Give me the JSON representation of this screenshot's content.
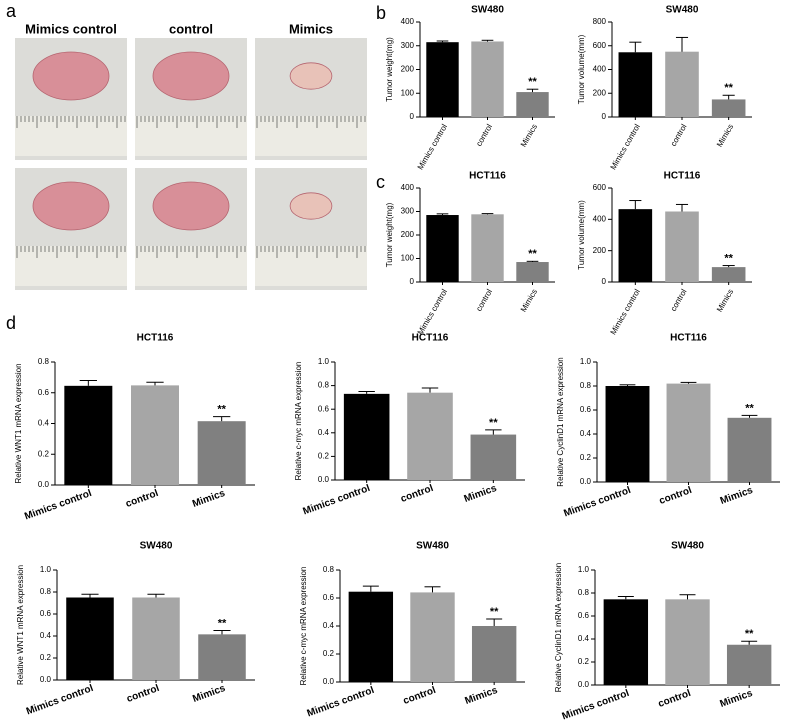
{
  "panel_labels": [
    "a",
    "b",
    "c",
    "d"
  ],
  "photo": {
    "columns": [
      "Mimics control",
      "control",
      "Mimics"
    ]
  },
  "chart_data": [
    {
      "type": "bar",
      "title": "SW480",
      "y_label": "Tumor weight(mg)",
      "categories": [
        "Mimics control",
        "control",
        "Mimics"
      ],
      "values": [
        315,
        318,
        105
      ],
      "errors": [
        5,
        5,
        12
      ],
      "significance": [
        null,
        null,
        "**"
      ],
      "colors": [
        "#000000",
        "#a6a6a6",
        "#808080"
      ],
      "ylim": [
        0,
        400
      ],
      "yticks": [
        0,
        100,
        200,
        300,
        400
      ]
    },
    {
      "type": "bar",
      "title": "SW480",
      "y_label": "Tumor volume(mm)",
      "categories": [
        "Mimics control",
        "control",
        "Mimics"
      ],
      "values": [
        545,
        550,
        148
      ],
      "errors": [
        85,
        120,
        35
      ],
      "significance": [
        null,
        null,
        "**"
      ],
      "colors": [
        "#000000",
        "#a6a6a6",
        "#808080"
      ],
      "ylim": [
        0,
        800
      ],
      "yticks": [
        0,
        200,
        400,
        600,
        800
      ]
    },
    {
      "type": "bar",
      "title": "HCT116",
      "y_label": "Tumor weight(mg)",
      "categories": [
        "Mimics control",
        "control",
        "Mimics"
      ],
      "values": [
        285,
        288,
        85
      ],
      "errors": [
        5,
        3,
        3
      ],
      "significance": [
        null,
        null,
        "**"
      ],
      "colors": [
        "#000000",
        "#a6a6a6",
        "#808080"
      ],
      "ylim": [
        0,
        400
      ],
      "yticks": [
        0,
        100,
        200,
        300,
        400
      ]
    },
    {
      "type": "bar",
      "title": "HCT116",
      "y_label": "Tumor volume(mm)",
      "categories": [
        "Mimics control",
        "control",
        "Mimics"
      ],
      "values": [
        465,
        450,
        95
      ],
      "errors": [
        55,
        45,
        10
      ],
      "significance": [
        null,
        null,
        "**"
      ],
      "colors": [
        "#000000",
        "#a6a6a6",
        "#808080"
      ],
      "ylim": [
        0,
        600
      ],
      "yticks": [
        0,
        200,
        400,
        600
      ]
    },
    {
      "type": "bar",
      "title": "HCT116",
      "y_label": "Relative WNT1 mRNA expression",
      "categories": [
        "Mimics control",
        "control",
        "Mimics"
      ],
      "values": [
        0.645,
        0.648,
        0.415
      ],
      "errors": [
        0.035,
        0.02,
        0.03
      ],
      "significance": [
        null,
        null,
        "**"
      ],
      "colors": [
        "#000000",
        "#a6a6a6",
        "#808080"
      ],
      "ylim": [
        0,
        0.8
      ],
      "yticks": [
        {
          "value": 0,
          "label": "0.0"
        },
        0.2,
        0.4,
        0.6,
        0.8
      ]
    },
    {
      "type": "bar",
      "title": "HCT116",
      "y_label": "Relative c-myc mRNA expression",
      "categories": [
        "Mimics control",
        "control",
        "Mimics"
      ],
      "values": [
        0.73,
        0.74,
        0.385
      ],
      "errors": [
        0.02,
        0.04,
        0.04
      ],
      "significance": [
        null,
        null,
        "**"
      ],
      "colors": [
        "#000000",
        "#a6a6a6",
        "#808080"
      ],
      "ylim": [
        0,
        1.0
      ],
      "yticks": [
        {
          "value": 0,
          "label": "0.0"
        },
        0.2,
        0.4,
        0.6,
        0.8,
        {
          "value": 1,
          "label": "1.0"
        }
      ]
    },
    {
      "type": "bar",
      "title": "HCT116",
      "y_label": "Relative CyclinD1 mRNA expression",
      "categories": [
        "Mimics control",
        "control",
        "Mimics"
      ],
      "values": [
        0.8,
        0.82,
        0.535
      ],
      "errors": [
        0.01,
        0.01,
        0.02
      ],
      "significance": [
        null,
        null,
        "**"
      ],
      "colors": [
        "#000000",
        "#a6a6a6",
        "#808080"
      ],
      "ylim": [
        0,
        1.0
      ],
      "yticks": [
        {
          "value": 0,
          "label": "0.0"
        },
        0.2,
        0.4,
        0.6,
        0.8,
        {
          "value": 1,
          "label": "1.0"
        }
      ]
    },
    {
      "type": "bar",
      "title": "SW480",
      "y_label": "Relative WNT1 mRNA expression",
      "categories": [
        "Mimics control",
        "control",
        "Mimics"
      ],
      "values": [
        0.75,
        0.75,
        0.415
      ],
      "errors": [
        0.03,
        0.03,
        0.035
      ],
      "significance": [
        null,
        null,
        "**"
      ],
      "colors": [
        "#000000",
        "#a6a6a6",
        "#808080"
      ],
      "ylim": [
        0,
        1.0
      ],
      "yticks": [
        {
          "value": 0,
          "label": "0.0"
        },
        0.2,
        0.4,
        0.6,
        0.8,
        {
          "value": 1,
          "label": "1.0"
        }
      ]
    },
    {
      "type": "bar",
      "title": "SW480",
      "y_label": "Relative c-myc mRNA expression",
      "categories": [
        "Mimics control",
        "control",
        "Mimics"
      ],
      "values": [
        0.645,
        0.64,
        0.4
      ],
      "errors": [
        0.04,
        0.04,
        0.05
      ],
      "significance": [
        null,
        null,
        "**"
      ],
      "colors": [
        "#000000",
        "#a6a6a6",
        "#808080"
      ],
      "ylim": [
        0,
        0.8
      ],
      "yticks": [
        {
          "value": 0,
          "label": "0.0"
        },
        0.2,
        0.4,
        0.6,
        0.8
      ]
    },
    {
      "type": "bar",
      "title": "SW480",
      "y_label": "Relative CyclinD1 mRNA expression",
      "categories": [
        "Mimics control",
        "control",
        "Mimics"
      ],
      "values": [
        0.745,
        0.745,
        0.35
      ],
      "errors": [
        0.025,
        0.04,
        0.03
      ],
      "significance": [
        null,
        null,
        "**"
      ],
      "colors": [
        "#000000",
        "#a6a6a6",
        "#808080"
      ],
      "ylim": [
        0,
        1.0
      ],
      "yticks": [
        {
          "value": 0,
          "label": "0.0"
        },
        0.2,
        0.4,
        0.6,
        0.8,
        {
          "value": 1,
          "label": "1.0"
        }
      ]
    }
  ]
}
